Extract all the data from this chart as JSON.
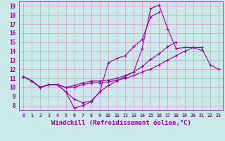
{
  "background_color": "#cce9e9",
  "grid_color": "#cc99cc",
  "line_color": "#990099",
  "marker": "+",
  "xlabel": "Windchill (Refroidissement éolien,°C)",
  "xlabel_fontsize": 6.5,
  "xticks": [
    0,
    1,
    2,
    3,
    4,
    5,
    6,
    7,
    8,
    9,
    10,
    11,
    12,
    13,
    14,
    15,
    16,
    17,
    18,
    19,
    20,
    21,
    22,
    23
  ],
  "yticks": [
    8,
    9,
    10,
    11,
    12,
    13,
    14,
    15,
    16,
    17,
    18,
    19
  ],
  "xlim": [
    -0.5,
    23.5
  ],
  "ylim": [
    7.5,
    19.5
  ],
  "series": [
    [
      11.2,
      10.7,
      10.0,
      10.3,
      10.3,
      9.5,
      7.7,
      8.0,
      8.4,
      9.5,
      10.2,
      10.7,
      11.2,
      11.7,
      14.3,
      18.7,
      19.1,
      16.5,
      14.3,
      14.4,
      14.4,
      14.1,
      null,
      null
    ],
    [
      11.2,
      10.7,
      10.0,
      10.3,
      10.3,
      9.5,
      8.7,
      8.3,
      8.5,
      9.5,
      12.7,
      13.2,
      13.5,
      14.5,
      15.3,
      17.8,
      18.3,
      null,
      null,
      null,
      null,
      null,
      null,
      null
    ],
    [
      11.2,
      10.7,
      10.0,
      10.3,
      10.3,
      10.0,
      10.2,
      10.5,
      10.7,
      10.7,
      10.8,
      11.0,
      11.3,
      11.7,
      12.3,
      13.1,
      13.7,
      14.5,
      15.0,
      null,
      null,
      null,
      null,
      null
    ],
    [
      11.2,
      10.7,
      10.0,
      10.3,
      10.3,
      10.0,
      10.0,
      10.3,
      10.5,
      10.5,
      10.6,
      10.8,
      11.0,
      11.3,
      11.7,
      12.0,
      12.5,
      13.0,
      13.5,
      14.0,
      14.4,
      14.4,
      12.5,
      12.0
    ]
  ]
}
